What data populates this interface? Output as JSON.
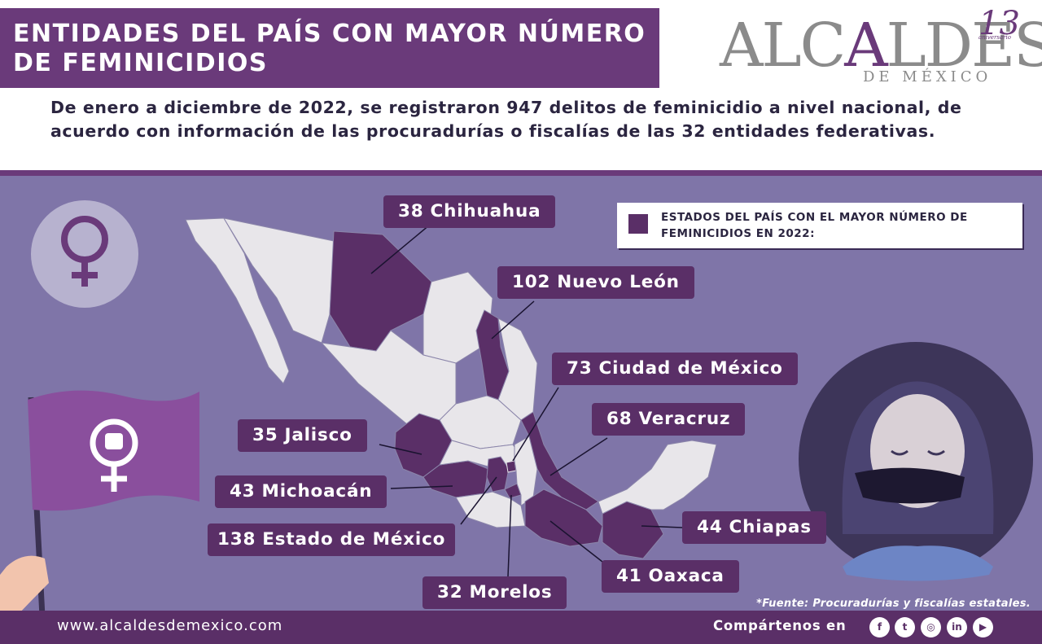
{
  "header": {
    "title": "ENTIDADES DEL PAÍS CON MAYOR NÚMERO DE FEMINICIDIOS",
    "intro": "De enero a diciembre de 2022, se registraron 947 delitos de feminicidio a nivel nacional, de acuerdo con información de las procuradurías o fiscalías de las 32 entidades federativas."
  },
  "logo": {
    "word_left": "ALC",
    "word_accent": "A",
    "word_right": "LDES",
    "subtitle": "DE MÉXICO",
    "anniversary": "13",
    "anniversary_sub": "aniversario"
  },
  "legend": {
    "text": "ESTADOS DEL PAÍS CON EL MAYOR NÚMERO DE FEMINICIDIOS EN 2022:",
    "color": "#5a2f67"
  },
  "states": [
    {
      "value": "38",
      "name": "Chihuahua"
    },
    {
      "value": "102",
      "name": "Nuevo León"
    },
    {
      "value": "73",
      "name": "Ciudad de México"
    },
    {
      "value": "68",
      "name": "Veracruz"
    },
    {
      "value": "35",
      "name": "Jalisco"
    },
    {
      "value": "43",
      "name": "Michoacán"
    },
    {
      "value": "44",
      "name": "Chiapas"
    },
    {
      "value": "138",
      "name": "Estado de México"
    },
    {
      "value": "41",
      "name": "Oaxaca"
    },
    {
      "value": "32",
      "name": "Morelos"
    }
  ],
  "source": "*Fuente: Procuradurías y fiscalías estatales.",
  "footer": {
    "url": "www.alcaldesdemexico.com",
    "share": "Compártenos en",
    "social": [
      {
        "icon": "facebook-icon",
        "glyph": "f"
      },
      {
        "icon": "twitter-icon",
        "glyph": "t"
      },
      {
        "icon": "instagram-icon",
        "glyph": "◎"
      },
      {
        "icon": "linkedin-icon",
        "glyph": "in"
      },
      {
        "icon": "youtube-icon",
        "glyph": "▶"
      }
    ]
  },
  "colors": {
    "primary": "#6a3a7a",
    "dark_purple": "#5a2f67",
    "background": "#7f75a8",
    "map_light": "#e8e6ea"
  }
}
